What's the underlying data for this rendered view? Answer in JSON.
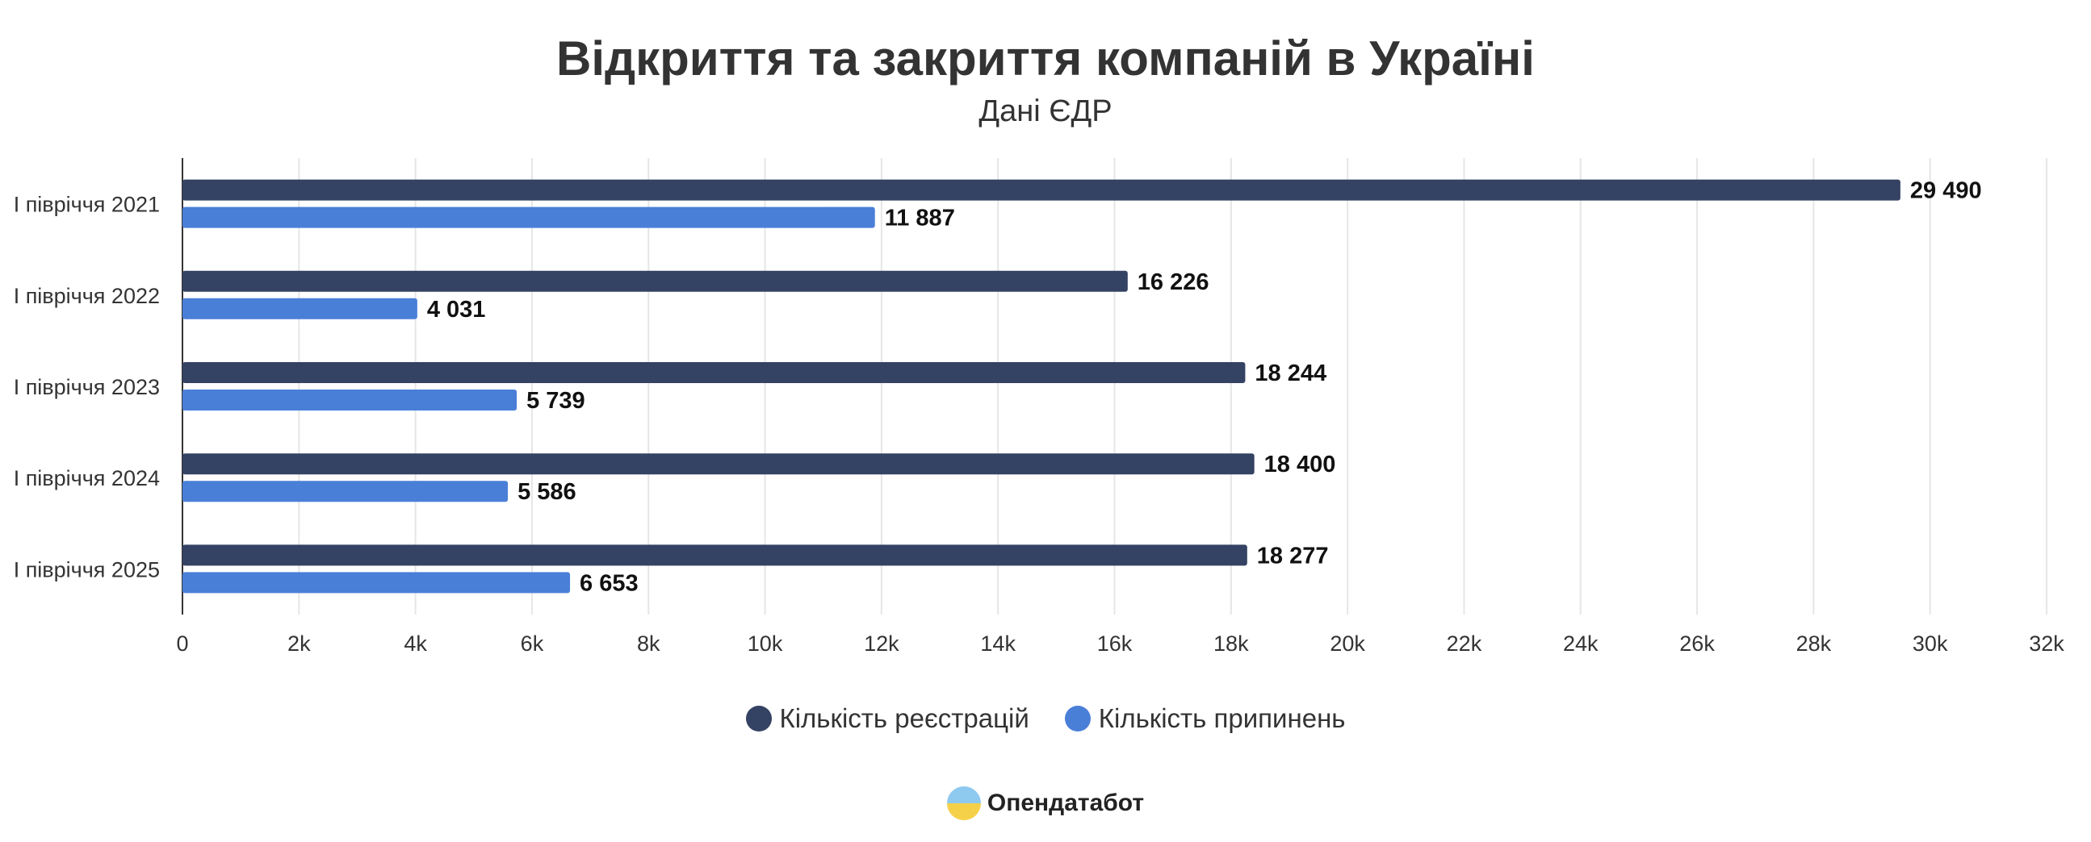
{
  "chart_data": {
    "type": "bar",
    "orientation": "horizontal",
    "title": "Відкриття та закриття компаній в Україні",
    "subtitle": "Дані ЄДР",
    "categories": [
      "І півріччя 2021",
      "І півріччя 2022",
      "І півріччя 2023",
      "І півріччя 2024",
      "І півріччя 2025"
    ],
    "series": [
      {
        "name": "Кількість реєстрацій",
        "color": "#344263",
        "values": [
          29490,
          16226,
          18244,
          18400,
          18277
        ],
        "labels": [
          "29 490",
          "16 226",
          "18 244",
          "18 400",
          "18 277"
        ]
      },
      {
        "name": "Кількість припинень",
        "color": "#4a7fd8",
        "values": [
          11887,
          4031,
          5739,
          5586,
          6653
        ],
        "labels": [
          "11 887",
          "4 031",
          "5 739",
          "5 586",
          "6 653"
        ]
      }
    ],
    "xlim": [
      0,
      32000
    ],
    "xticks": [
      "0",
      "2k",
      "4k",
      "6k",
      "8k",
      "10k",
      "12k",
      "14k",
      "16k",
      "18k",
      "20k",
      "22k",
      "24k",
      "26k",
      "28k",
      "30k",
      "32k"
    ],
    "grid": true,
    "legend_position": "bottom"
  },
  "brand": {
    "name": "Опендатабот"
  }
}
